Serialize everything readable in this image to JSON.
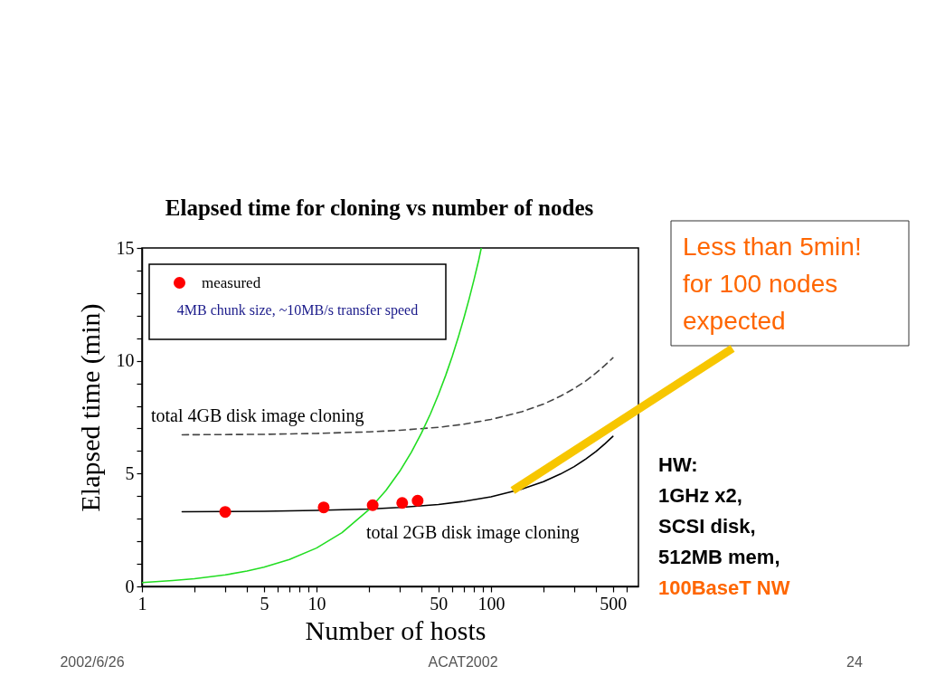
{
  "chart_data": {
    "type": "line",
    "title": "Elapsed time for cloning vs number of nodes",
    "xlabel": "Number of hosts",
    "ylabel": "Elapsed time (min)",
    "log": "x",
    "xlim": [
      1,
      700
    ],
    "ylim": [
      0,
      15
    ],
    "xticks": [
      1,
      {
        "value": 2,
        "label": null
      },
      {
        "value": 3,
        "label": null
      },
      {
        "value": 4,
        "label": null
      },
      5,
      {
        "value": 6,
        "label": null
      },
      {
        "value": 7,
        "label": null
      },
      {
        "value": 8,
        "label": null
      },
      {
        "value": 9,
        "label": null
      },
      10,
      {
        "value": 20,
        "label": null
      },
      {
        "value": 30,
        "label": null
      },
      {
        "value": 40,
        "label": null
      },
      50,
      {
        "value": 60,
        "label": null
      },
      {
        "value": 70,
        "label": null
      },
      {
        "value": 80,
        "label": null
      },
      {
        "value": 90,
        "label": null
      },
      100,
      {
        "value": 200,
        "label": null
      },
      {
        "value": 300,
        "label": null
      },
      {
        "value": 400,
        "label": null
      },
      500,
      {
        "value": 600,
        "label": null
      }
    ],
    "yticks": [
      0,
      {
        "value": 1,
        "label": null
      },
      {
        "value": 2,
        "label": null
      },
      {
        "value": 3,
        "label": null
      },
      {
        "value": 4,
        "label": null
      },
      5,
      {
        "value": 6,
        "label": null
      },
      {
        "value": 7,
        "label": null
      },
      {
        "value": 8,
        "label": null
      },
      {
        "value": 9,
        "label": null
      },
      10,
      {
        "value": 11,
        "label": null
      },
      {
        "value": 12,
        "label": null
      },
      {
        "value": 13,
        "label": null
      },
      {
        "value": 14,
        "label": null
      },
      15
    ],
    "legend": "top left",
    "series": [
      {
        "name": "total 4GB disk image cloning",
        "color": "#444444",
        "line_style": "dashed",
        "x": [
          1.7,
          3,
          5,
          10,
          20,
          30,
          50,
          70,
          100,
          150,
          200,
          250,
          300,
          350,
          400,
          450,
          500
        ],
        "values": [
          6.72,
          6.73,
          6.74,
          6.78,
          6.85,
          6.92,
          7.05,
          7.19,
          7.4,
          7.74,
          8.08,
          8.43,
          8.77,
          9.11,
          9.46,
          9.8,
          10.13
        ]
      },
      {
        "name": "total 2GB disk image cloning",
        "color": "#000000",
        "line_style": "solid",
        "x": [
          1.7,
          3,
          5,
          10,
          20,
          30,
          50,
          70,
          100,
          150,
          200,
          250,
          300,
          350,
          400,
          450,
          500
        ],
        "values": [
          3.31,
          3.32,
          3.33,
          3.37,
          3.43,
          3.5,
          3.63,
          3.77,
          3.97,
          4.31,
          4.64,
          4.98,
          5.31,
          5.65,
          5.98,
          6.32,
          6.65
        ]
      },
      {
        "color": "#22dd22",
        "line_style": "solid",
        "x": [
          1,
          1.5,
          2,
          3,
          4,
          5,
          7,
          10,
          14,
          20,
          25,
          30,
          35,
          40,
          45,
          50,
          55,
          60,
          65,
          70,
          75,
          80,
          85,
          88
        ],
        "values": [
          0.17,
          0.26,
          0.34,
          0.51,
          0.68,
          0.85,
          1.19,
          1.7,
          2.38,
          3.4,
          4.25,
          5.1,
          5.95,
          6.8,
          7.65,
          8.5,
          9.35,
          10.2,
          11.05,
          11.9,
          12.75,
          13.6,
          14.45,
          15.0
        ]
      },
      {
        "name": "measured",
        "type": "scatter",
        "color": "#ff0000",
        "marker": "circle",
        "x": [
          3,
          11,
          21,
          31,
          38
        ],
        "values": [
          3.3,
          3.5,
          3.6,
          3.7,
          3.8
        ]
      }
    ],
    "annotations": [
      "4MB chunk size,  ~10MB/s transfer speed",
      "Less than 5min!\nfor 100 nodes\nexpected",
      "HW:\n1GHz x2,\nSCSI disk,\n512MB mem,",
      "100BaseT NW",
      "2002/6/26",
      "ACAT2002",
      "24"
    ]
  }
}
